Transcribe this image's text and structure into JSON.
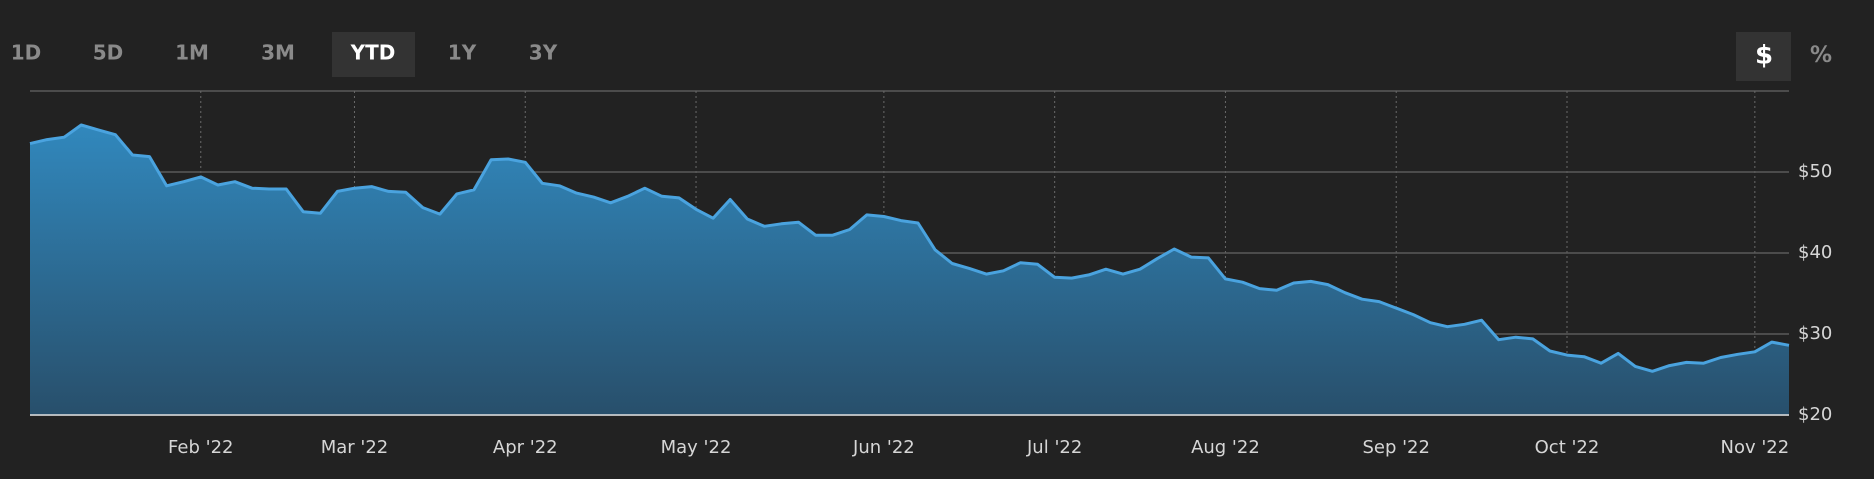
{
  "range_buttons": [
    "1D",
    "5D",
    "1M",
    "3M",
    "YTD",
    "1Y",
    "3Y"
  ],
  "selected_range": 4,
  "unit_buttons": [
    "$",
    "%"
  ],
  "selected_unit": 0,
  "chart_data": {
    "type": "area",
    "color": "#4aa3df",
    "categories": [
      null,
      null,
      null,
      null,
      null,
      null,
      null,
      null,
      null,
      null,
      "Feb '22",
      null,
      null,
      null,
      null,
      null,
      null,
      null,
      null,
      "Mar '22",
      null,
      null,
      null,
      null,
      null,
      null,
      null,
      null,
      null,
      "Apr '22",
      null,
      null,
      null,
      null,
      null,
      null,
      null,
      null,
      null,
      "May '22",
      null,
      null,
      null,
      null,
      null,
      null,
      null,
      null,
      null,
      null,
      "Jun '22",
      null,
      null,
      null,
      null,
      null,
      null,
      null,
      null,
      null,
      "Jul '22",
      null,
      null,
      null,
      null,
      null,
      null,
      null,
      null,
      null,
      "Aug '22",
      null,
      null,
      null,
      null,
      null,
      null,
      null,
      null,
      null,
      "Sep '22",
      null,
      null,
      null,
      null,
      null,
      null,
      null,
      null,
      null,
      "Oct '22",
      null,
      null,
      null,
      null,
      null,
      null,
      null,
      null,
      null,
      null,
      "Nov '22",
      null,
      null
    ],
    "values": [
      53.5,
      54,
      54.3,
      55.8,
      55.2,
      54.6,
      52.1,
      51.9,
      48.3,
      48.8,
      49.4,
      48.4,
      48.8,
      48.0,
      47.9,
      47.9,
      45.1,
      44.9,
      47.6,
      48.0,
      48.2,
      47.6,
      47.5,
      45.6,
      44.8,
      47.3,
      47.8,
      51.5,
      51.6,
      51.2,
      48.6,
      48.3,
      47.4,
      46.9,
      46.2,
      47.0,
      48.0,
      47.0,
      46.8,
      45.4,
      44.3,
      46.6,
      44.2,
      43.3,
      43.6,
      43.8,
      42.2,
      42.2,
      42.9,
      44.7,
      44.5,
      44.0,
      43.7,
      40.4,
      38.7,
      38.1,
      37.4,
      37.8,
      38.8,
      38.6,
      37.0,
      36.9,
      37.3,
      38.0,
      37.4,
      38.0,
      39.3,
      40.5,
      39.5,
      39.4,
      36.8,
      36.4,
      35.6,
      35.4,
      36.3,
      36.5,
      36.1,
      35.1,
      34.3,
      34.0,
      33.2,
      32.4,
      31.4,
      30.9,
      31.2,
      31.7,
      29.3,
      29.6,
      29.4,
      27.9,
      27.4,
      27.2,
      26.4,
      27.6,
      26.0,
      25.4,
      26.1,
      26.5,
      26.4,
      27.1,
      27.5,
      27.8,
      29.0,
      28.6
    ],
    "ylim": [
      20,
      60
    ],
    "yticks": [
      {
        "value": 20,
        "label": "$20"
      },
      {
        "value": 30,
        "label": "$30"
      },
      {
        "value": 40,
        "label": "$40"
      },
      {
        "value": 50,
        "label": "$50"
      }
    ],
    "grid": true
  }
}
